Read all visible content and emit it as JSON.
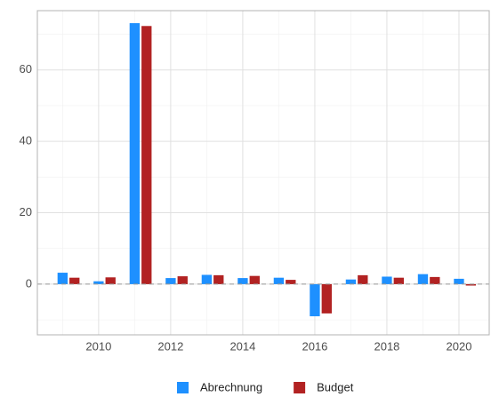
{
  "chart_data": {
    "type": "bar",
    "x": [
      2009,
      2010,
      2011,
      2012,
      2013,
      2014,
      2015,
      2016,
      2017,
      2018,
      2019,
      2020
    ],
    "series": [
      {
        "name": "Abrechnung",
        "color": "#1e90ff",
        "values": [
          3.2,
          0.8,
          73.1,
          1.7,
          2.6,
          1.7,
          1.8,
          -9.0,
          1.3,
          2.1,
          2.8,
          1.5
        ]
      },
      {
        "name": "Budget",
        "color": "#b22222",
        "values": [
          1.8,
          1.9,
          72.3,
          2.2,
          2.5,
          2.3,
          1.2,
          -8.2,
          2.5,
          1.8,
          2.0,
          -0.4
        ]
      }
    ],
    "xlim": [
      2008.3,
      2020.84
    ],
    "xticks": [
      2010,
      2012,
      2014,
      2016,
      2018,
      2020
    ],
    "ylim": [
      -14.2,
      76.6
    ],
    "yticks": [
      0,
      20,
      40,
      60
    ],
    "grid": true,
    "legend": "bottom"
  }
}
